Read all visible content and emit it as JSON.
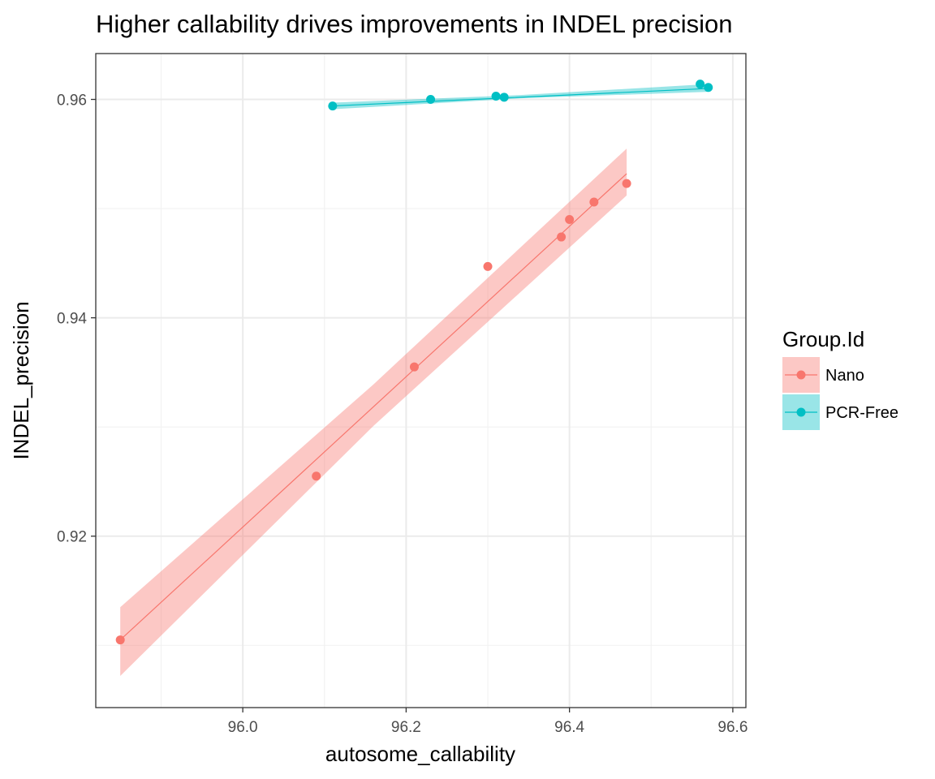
{
  "chart_data": {
    "type": "scatter",
    "title": "Higher callability drives improvements in INDEL precision",
    "xlabel": "autosome_callability",
    "ylabel": "INDEL_precision",
    "xlim": [
      95.82,
      96.616
    ],
    "ylim": [
      0.9043,
      0.9642
    ],
    "x_ticks": [
      96.0,
      96.2,
      96.4,
      96.6
    ],
    "x_tick_labels": [
      "96.0",
      "96.2",
      "96.4",
      "96.6"
    ],
    "y_ticks": [
      0.92,
      0.94,
      0.96
    ],
    "y_tick_labels": [
      "0.92",
      "0.94",
      "0.96"
    ],
    "grid": true,
    "legend": {
      "title": "Group.Id",
      "placement": "right"
    },
    "series": [
      {
        "name": "Nano",
        "color": "#F8766D",
        "band_color": "#F8766D",
        "points": [
          {
            "x": 95.85,
            "y": 0.9105
          },
          {
            "x": 96.09,
            "y": 0.9255
          },
          {
            "x": 96.21,
            "y": 0.9355
          },
          {
            "x": 96.3,
            "y": 0.9447
          },
          {
            "x": 96.39,
            "y": 0.9474
          },
          {
            "x": 96.4,
            "y": 0.949
          },
          {
            "x": 96.43,
            "y": 0.9506
          },
          {
            "x": 96.47,
            "y": 0.9523
          }
        ],
        "fit": {
          "x": [
            95.85,
            96.47
          ],
          "y": [
            0.9105,
            0.9532
          ]
        },
        "band": {
          "x": [
            95.85,
            96.16,
            96.47
          ],
          "lower": [
            0.9072,
            0.9301,
            0.9512
          ],
          "upper": [
            0.9135,
            0.9339,
            0.9555
          ]
        }
      },
      {
        "name": "PCR-Free",
        "color": "#00BFC4",
        "band_color": "#00BFC4",
        "points": [
          {
            "x": 96.11,
            "y": 0.9594
          },
          {
            "x": 96.23,
            "y": 0.96
          },
          {
            "x": 96.31,
            "y": 0.9603
          },
          {
            "x": 96.32,
            "y": 0.9602
          },
          {
            "x": 96.56,
            "y": 0.9614
          },
          {
            "x": 96.57,
            "y": 0.9611
          }
        ],
        "fit": {
          "x": [
            96.11,
            96.57
          ],
          "y": [
            0.9594,
            0.961
          ]
        },
        "band": {
          "x": [
            96.11,
            96.34,
            96.57
          ],
          "lower": [
            0.9591,
            0.9601,
            0.9607
          ],
          "upper": [
            0.9597,
            0.9604,
            0.9614
          ]
        }
      }
    ]
  }
}
